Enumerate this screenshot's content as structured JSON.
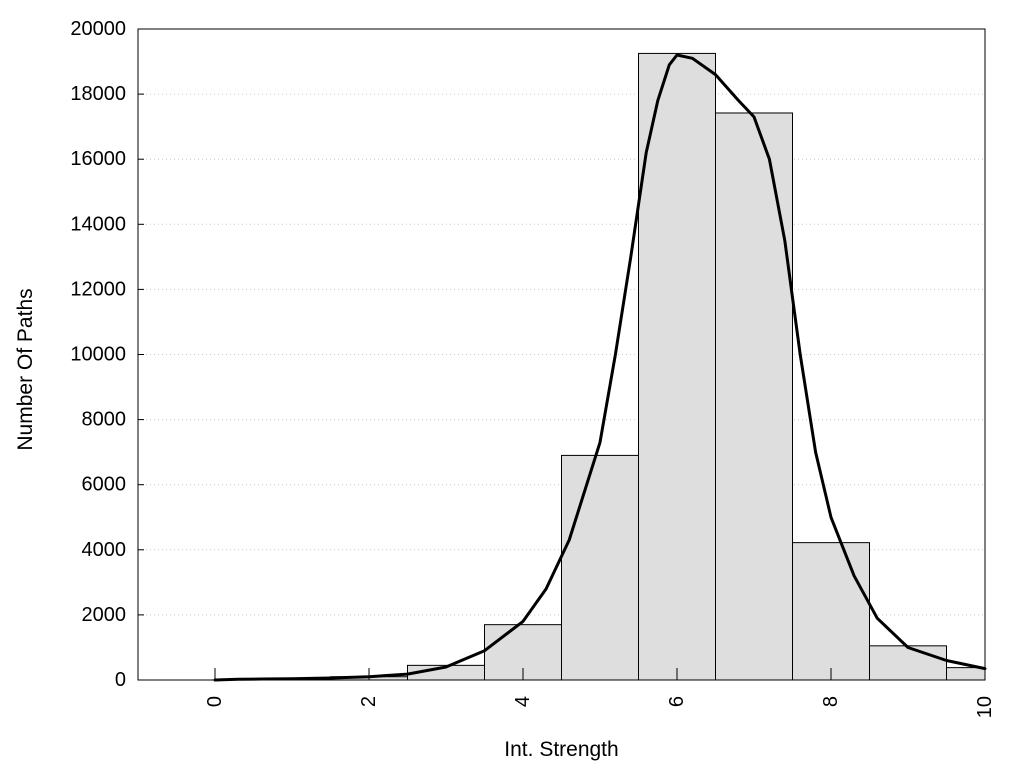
{
  "chart_data": {
    "type": "bar",
    "title": "",
    "xlabel": "Int. Strength",
    "ylabel": "Number Of Paths",
    "xlim": [
      -1,
      10
    ],
    "ylim": [
      0,
      20000
    ],
    "x_ticks": [
      0,
      2,
      4,
      6,
      8,
      10
    ],
    "y_ticks": [
      0,
      2000,
      4000,
      6000,
      8000,
      10000,
      12000,
      14000,
      16000,
      18000,
      20000
    ],
    "grid": "horizontal dotted",
    "legend": "none",
    "bar_fill": "#dedede",
    "line_color": "#000000",
    "bins": [
      {
        "x0": -0.5,
        "x1": 0.5,
        "value": 0
      },
      {
        "x0": 0.5,
        "x1": 1.5,
        "value": 0
      },
      {
        "x0": 1.5,
        "x1": 2.5,
        "value": 100
      },
      {
        "x0": 2.5,
        "x1": 3.5,
        "value": 450
      },
      {
        "x0": 3.5,
        "x1": 4.5,
        "value": 1700
      },
      {
        "x0": 4.5,
        "x1": 5.5,
        "value": 6900
      },
      {
        "x0": 5.5,
        "x1": 6.5,
        "value": 19250
      },
      {
        "x0": 6.5,
        "x1": 7.5,
        "value": 17420
      },
      {
        "x0": 7.5,
        "x1": 8.5,
        "value": 4220
      },
      {
        "x0": 8.5,
        "x1": 9.5,
        "value": 1050
      },
      {
        "x0": 9.5,
        "x1": 10.0,
        "value": 380
      }
    ],
    "curve": {
      "x": [
        0,
        0.3,
        0.6,
        1.0,
        1.5,
        2.0,
        2.5,
        3.0,
        3.5,
        4.0,
        4.3,
        4.6,
        5.0,
        5.2,
        5.4,
        5.6,
        5.75,
        5.9,
        6.0,
        6.2,
        6.5,
        6.8,
        7.0,
        7.2,
        7.4,
        7.6,
        7.8,
        8.0,
        8.3,
        8.6,
        9.0,
        9.5,
        10.0
      ],
      "y": [
        0,
        20,
        30,
        40,
        60,
        100,
        180,
        400,
        900,
        1800,
        2800,
        4300,
        7300,
        10000,
        13000,
        16200,
        17800,
        18900,
        19200,
        19100,
        18600,
        17800,
        17300,
        16000,
        13500,
        10000,
        7000,
        5000,
        3200,
        1900,
        1000,
        600,
        350
      ]
    }
  }
}
